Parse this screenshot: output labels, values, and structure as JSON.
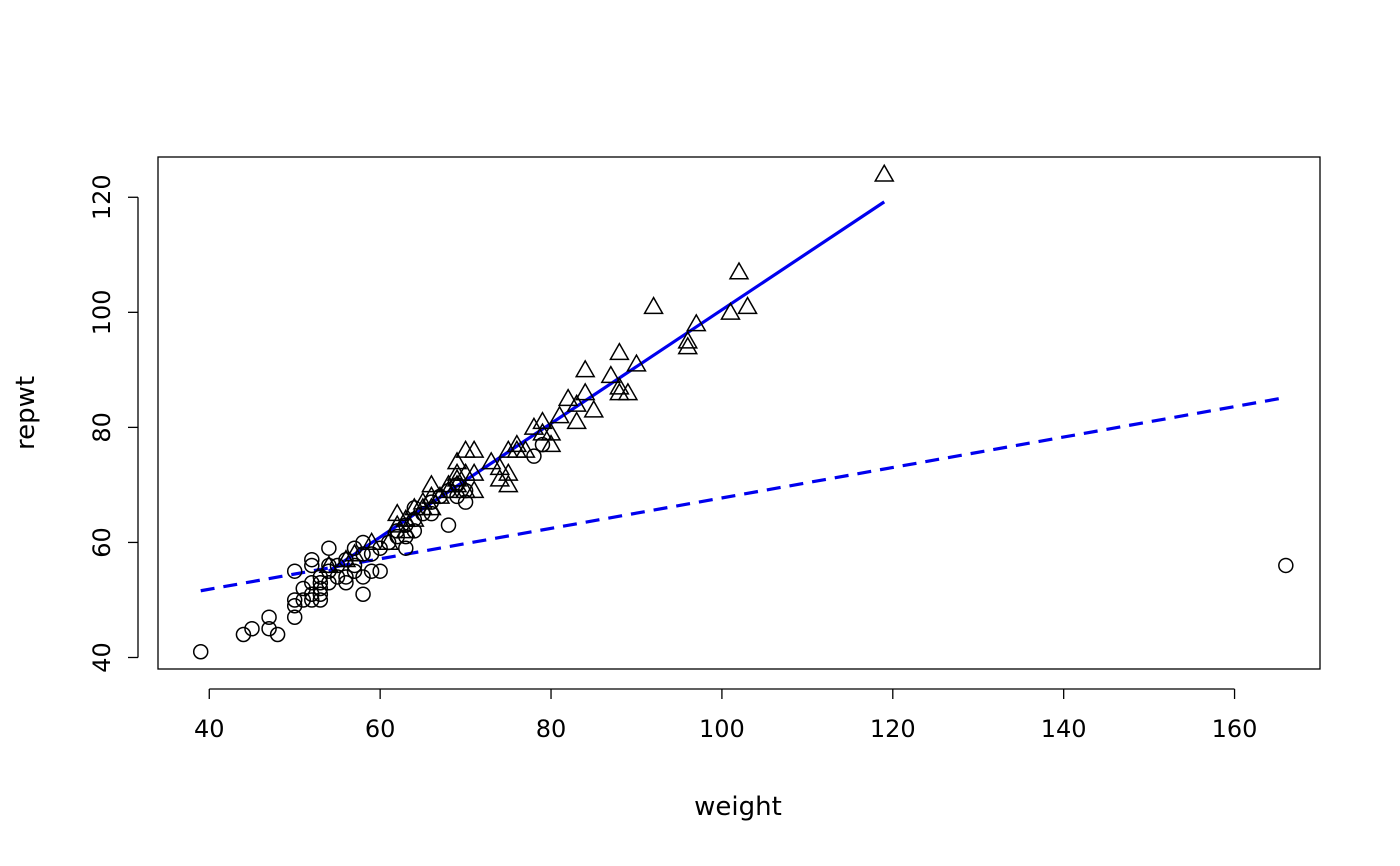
{
  "chart_data": {
    "type": "scatter",
    "title": "",
    "xlabel": "weight",
    "ylabel": "repwt",
    "xlim": [
      34,
      170
    ],
    "ylim": [
      38,
      127
    ],
    "x_ticks": [
      40,
      60,
      80,
      100,
      120,
      140,
      160
    ],
    "y_ticks": [
      40,
      60,
      80,
      100,
      120
    ],
    "grid": false,
    "series": [
      {
        "marker": "circle",
        "color": "#000000",
        "points": [
          [
            39,
            41
          ],
          [
            44,
            44
          ],
          [
            45,
            45
          ],
          [
            47,
            45
          ],
          [
            47,
            47
          ],
          [
            48,
            44
          ],
          [
            50,
            47
          ],
          [
            50,
            49
          ],
          [
            50,
            50
          ],
          [
            50,
            55
          ],
          [
            51,
            50
          ],
          [
            51,
            52
          ],
          [
            52,
            50
          ],
          [
            52,
            51
          ],
          [
            52,
            53
          ],
          [
            52,
            56
          ],
          [
            52,
            57
          ],
          [
            53,
            50
          ],
          [
            53,
            51
          ],
          [
            53,
            52
          ],
          [
            53,
            53
          ],
          [
            53,
            54
          ],
          [
            54,
            53
          ],
          [
            54,
            55
          ],
          [
            54,
            56
          ],
          [
            54,
            59
          ],
          [
            55,
            54
          ],
          [
            55,
            56
          ],
          [
            56,
            53
          ],
          [
            56,
            54
          ],
          [
            56,
            57
          ],
          [
            57,
            55
          ],
          [
            57,
            56
          ],
          [
            57,
            59
          ],
          [
            58,
            51
          ],
          [
            58,
            54
          ],
          [
            58,
            58
          ],
          [
            58,
            60
          ],
          [
            59,
            55
          ],
          [
            59,
            58
          ],
          [
            60,
            55
          ],
          [
            60,
            59
          ],
          [
            61,
            60
          ],
          [
            62,
            61
          ],
          [
            62,
            62
          ],
          [
            63,
            59
          ],
          [
            63,
            61
          ],
          [
            63,
            63
          ],
          [
            64,
            62
          ],
          [
            64,
            64
          ],
          [
            64,
            66
          ],
          [
            65,
            65
          ],
          [
            66,
            65
          ],
          [
            66,
            67
          ],
          [
            67,
            68
          ],
          [
            68,
            63
          ],
          [
            68,
            69
          ],
          [
            69,
            68
          ],
          [
            69,
            70
          ],
          [
            70,
            67
          ],
          [
            70,
            69
          ],
          [
            78,
            75
          ],
          [
            79,
            77
          ],
          [
            166,
            56
          ]
        ]
      },
      {
        "marker": "triangle",
        "color": "#000000",
        "points": [
          [
            54,
            56
          ],
          [
            56,
            57
          ],
          [
            57,
            58
          ],
          [
            59,
            60
          ],
          [
            61,
            60
          ],
          [
            62,
            63
          ],
          [
            62,
            65
          ],
          [
            63,
            62
          ],
          [
            63,
            64
          ],
          [
            64,
            64
          ],
          [
            64,
            66
          ],
          [
            65,
            66
          ],
          [
            65,
            67
          ],
          [
            66,
            66
          ],
          [
            66,
            68
          ],
          [
            66,
            70
          ],
          [
            67,
            68
          ],
          [
            68,
            69
          ],
          [
            68,
            70
          ],
          [
            69,
            70
          ],
          [
            69,
            71
          ],
          [
            69,
            72
          ],
          [
            69,
            74
          ],
          [
            70,
            69
          ],
          [
            70,
            72
          ],
          [
            70,
            76
          ],
          [
            71,
            69
          ],
          [
            71,
            72
          ],
          [
            71,
            76
          ],
          [
            73,
            74
          ],
          [
            74,
            71
          ],
          [
            74,
            73
          ],
          [
            75,
            70
          ],
          [
            75,
            72
          ],
          [
            75,
            76
          ],
          [
            76,
            76
          ],
          [
            76,
            77
          ],
          [
            77,
            76
          ],
          [
            78,
            80
          ],
          [
            79,
            79
          ],
          [
            79,
            81
          ],
          [
            80,
            77
          ],
          [
            80,
            79
          ],
          [
            81,
            82
          ],
          [
            82,
            85
          ],
          [
            83,
            81
          ],
          [
            83,
            84
          ],
          [
            84,
            86
          ],
          [
            84,
            90
          ],
          [
            85,
            83
          ],
          [
            87,
            89
          ],
          [
            88,
            86
          ],
          [
            88,
            87
          ],
          [
            88,
            93
          ],
          [
            89,
            86
          ],
          [
            90,
            91
          ],
          [
            92,
            101
          ],
          [
            96,
            94
          ],
          [
            96,
            95
          ],
          [
            97,
            98
          ],
          [
            101,
            100
          ],
          [
            102,
            107
          ],
          [
            103,
            101
          ],
          [
            119,
            124
          ]
        ]
      }
    ],
    "lines": [
      {
        "style": "solid",
        "color": "#0000ee",
        "x": [
          54,
          119
        ],
        "y": [
          55,
          119.2
        ]
      },
      {
        "style": "dashed",
        "color": "#0000ee",
        "x": [
          39,
          166
        ],
        "y": [
          51.6,
          85.2
        ]
      }
    ]
  }
}
